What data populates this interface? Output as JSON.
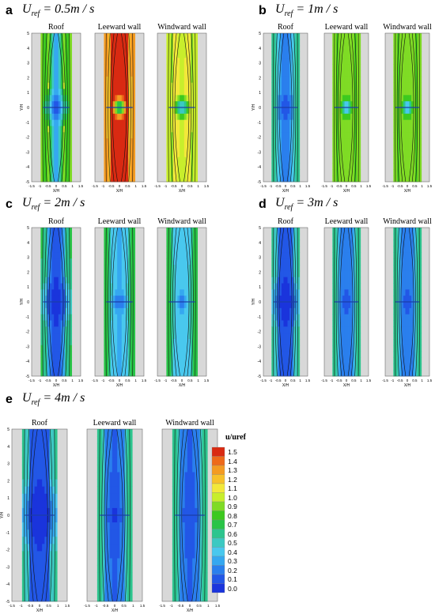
{
  "panels": [
    {
      "letter": "a",
      "title_main": "U",
      "title_sub": "ref",
      "title_rest": " = 0.5m / s",
      "plots": [
        {
          "label": "Roof",
          "scheme": "a-roof"
        },
        {
          "label": "Leeward wall",
          "scheme": "a-lee"
        },
        {
          "label": "Windward wall",
          "scheme": "a-wind"
        }
      ]
    },
    {
      "letter": "b",
      "title_main": "U",
      "title_sub": "ref",
      "title_rest": " = 1m / s",
      "plots": [
        {
          "label": "Roof",
          "scheme": "b-roof"
        },
        {
          "label": "Leeward wall",
          "scheme": "b-lee"
        },
        {
          "label": "Windward wall",
          "scheme": "b-wind"
        }
      ]
    },
    {
      "letter": "c",
      "title_main": "U",
      "title_sub": "ref",
      "title_rest": " = 2m / s",
      "plots": [
        {
          "label": "Roof",
          "scheme": "c-roof"
        },
        {
          "label": "Leeward wall",
          "scheme": "c-lee"
        },
        {
          "label": "Windward wall",
          "scheme": "c-wind"
        }
      ]
    },
    {
      "letter": "d",
      "title_main": "U",
      "title_sub": "ref",
      "title_rest": " = 3m / s",
      "plots": [
        {
          "label": "Roof",
          "scheme": "d-roof"
        },
        {
          "label": "Leeward wall",
          "scheme": "d-lee"
        },
        {
          "label": "Windward wall",
          "scheme": "d-wind"
        }
      ]
    },
    {
      "letter": "e",
      "title_main": "U",
      "title_sub": "ref",
      "title_rest": " = 4m / s",
      "plots": [
        {
          "label": "Roof",
          "scheme": "e-roof"
        },
        {
          "label": "Leeward wall",
          "scheme": "e-lee"
        },
        {
          "label": "Windward wall",
          "scheme": "e-wind"
        }
      ]
    }
  ],
  "axes": {
    "xlabel": "X/H",
    "ylabel": "Y/H",
    "xticks": [
      "-1.5",
      "-1",
      "-0.5",
      "0",
      "0.5",
      "1",
      "1.5"
    ],
    "yticks": [
      "5",
      "4",
      "3",
      "2",
      "1",
      "0",
      "-1",
      "-2",
      "-3",
      "-4",
      "-5"
    ]
  },
  "legend": {
    "title": "u/uref",
    "levels": [
      "1.5",
      "1.4",
      "1.3",
      "1.2",
      "1.1",
      "1.0",
      "0.9",
      "0.8",
      "0.7",
      "0.6",
      "0.5",
      "0.4",
      "0.3",
      "0.2",
      "0.1",
      "0.0"
    ],
    "colors": [
      "#d92a12",
      "#ee6a1a",
      "#f49b22",
      "#f7c12a",
      "#f3e83a",
      "#c8ee2c",
      "#7fdb25",
      "#3dc91f",
      "#29c447",
      "#2dc58e",
      "#3cc9c2",
      "#49c8ee",
      "#35a8f0",
      "#2a7fed",
      "#2257e6",
      "#1a34dc"
    ]
  },
  "colors": {
    "wall_gray": "#d8d8d8",
    "streamline": "#111111"
  }
}
